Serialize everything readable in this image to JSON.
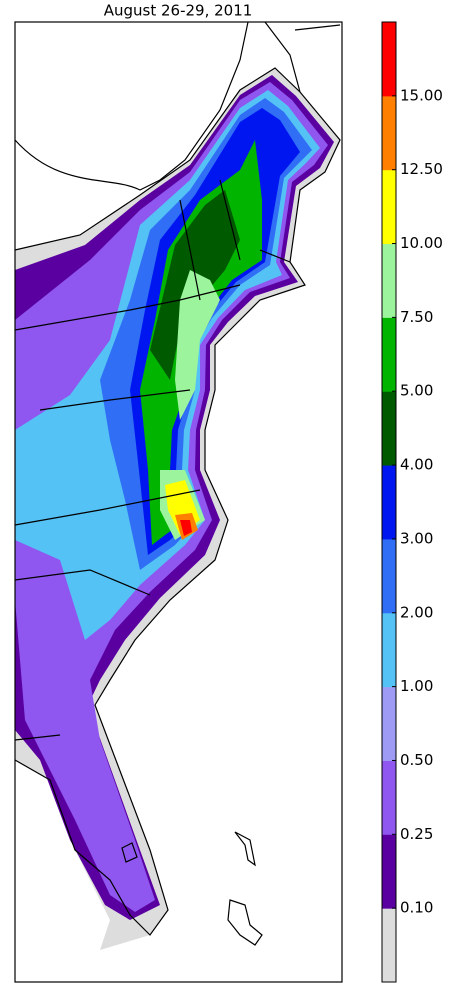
{
  "title": "August 26-29, 2011",
  "colorbar": {
    "colors": [
      "#dddddd",
      "#5a00a0",
      "#8f57f0",
      "#9d9bf4",
      "#55c2f5",
      "#2f6ef5",
      "#0016f0",
      "#005a00",
      "#00b400",
      "#9cf59c",
      "#ffff00",
      "#ff7f00",
      "#ff0000"
    ],
    "ticks": [
      {
        "value": 0.1,
        "label": "0.10"
      },
      {
        "value": 0.25,
        "label": "0.25"
      },
      {
        "value": 0.5,
        "label": "0.50"
      },
      {
        "value": 1,
        "label": "1.00"
      },
      {
        "value": 2,
        "label": "2.00"
      },
      {
        "value": 3,
        "label": "3.00"
      },
      {
        "value": 4,
        "label": "4.00"
      },
      {
        "value": 5,
        "label": "5.00"
      },
      {
        "value": 7.5,
        "label": "7.50"
      },
      {
        "value": 10,
        "label": "10.00"
      },
      {
        "value": 12.5,
        "label": "12.50"
      },
      {
        "value": 15,
        "label": "15.00"
      }
    ]
  }
}
